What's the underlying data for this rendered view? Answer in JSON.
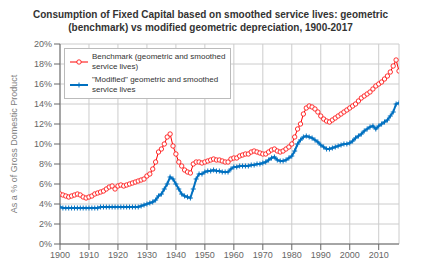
{
  "chart_data": {
    "type": "line",
    "title": "Consumption of Fixed Capital based on smoothed service lives: geometric\n(benchmark) vs modified geometric depreciation, 1900-2017",
    "ylabel": "As a % of Gross Domestic Product",
    "x": [
      1900,
      1901,
      1902,
      1903,
      1904,
      1905,
      1906,
      1907,
      1908,
      1909,
      1910,
      1911,
      1912,
      1913,
      1914,
      1915,
      1916,
      1917,
      1918,
      1919,
      1920,
      1921,
      1922,
      1923,
      1924,
      1925,
      1926,
      1927,
      1928,
      1929,
      1930,
      1931,
      1932,
      1933,
      1934,
      1935,
      1936,
      1937,
      1938,
      1939,
      1940,
      1941,
      1942,
      1943,
      1944,
      1945,
      1946,
      1947,
      1948,
      1949,
      1950,
      1951,
      1952,
      1953,
      1954,
      1955,
      1956,
      1957,
      1958,
      1959,
      1960,
      1961,
      1962,
      1963,
      1964,
      1965,
      1966,
      1967,
      1968,
      1969,
      1970,
      1971,
      1972,
      1973,
      1974,
      1975,
      1976,
      1977,
      1978,
      1979,
      1980,
      1981,
      1982,
      1983,
      1984,
      1985,
      1986,
      1987,
      1988,
      1989,
      1990,
      1991,
      1992,
      1993,
      1994,
      1995,
      1996,
      1997,
      1998,
      1999,
      2000,
      2001,
      2002,
      2003,
      2004,
      2005,
      2006,
      2007,
      2008,
      2009,
      2010,
      2011,
      2012,
      2013,
      2014,
      2015,
      2016,
      2017
    ],
    "series": [
      {
        "name": "Benchmark (geometric and smoothed\nservice lives)",
        "color": "#FF0000",
        "marker": "circle",
        "values": [
          0.05,
          0.049,
          0.048,
          0.047,
          0.048,
          0.049,
          0.05,
          0.049,
          0.047,
          0.046,
          0.047,
          0.048,
          0.05,
          0.051,
          0.052,
          0.053,
          0.055,
          0.057,
          0.058,
          0.055,
          0.058,
          0.059,
          0.058,
          0.059,
          0.06,
          0.061,
          0.062,
          0.063,
          0.064,
          0.065,
          0.068,
          0.07,
          0.075,
          0.082,
          0.092,
          0.095,
          0.1,
          0.107,
          0.11,
          0.098,
          0.09,
          0.082,
          0.078,
          0.074,
          0.072,
          0.071,
          0.08,
          0.082,
          0.082,
          0.081,
          0.082,
          0.083,
          0.084,
          0.085,
          0.084,
          0.084,
          0.083,
          0.082,
          0.082,
          0.085,
          0.086,
          0.086,
          0.088,
          0.089,
          0.09,
          0.09,
          0.092,
          0.093,
          0.092,
          0.091,
          0.09,
          0.09,
          0.092,
          0.094,
          0.095,
          0.093,
          0.092,
          0.093,
          0.095,
          0.097,
          0.1,
          0.107,
          0.115,
          0.12,
          0.13,
          0.136,
          0.138,
          0.137,
          0.135,
          0.132,
          0.128,
          0.125,
          0.123,
          0.122,
          0.124,
          0.126,
          0.128,
          0.13,
          0.132,
          0.134,
          0.136,
          0.138,
          0.14,
          0.143,
          0.146,
          0.148,
          0.15,
          0.152,
          0.155,
          0.158,
          0.16,
          0.162,
          0.165,
          0.168,
          0.172,
          0.178,
          0.184,
          0.173
        ]
      },
      {
        "name": "\"Modified\" geometric and smoothed\nservice lives",
        "color": "#0070C0",
        "marker": "plus",
        "values": [
          0.037,
          0.036,
          0.036,
          0.036,
          0.036,
          0.036,
          0.036,
          0.036,
          0.036,
          0.036,
          0.036,
          0.036,
          0.036,
          0.036,
          0.037,
          0.037,
          0.037,
          0.037,
          0.037,
          0.037,
          0.037,
          0.037,
          0.037,
          0.037,
          0.037,
          0.037,
          0.037,
          0.037,
          0.038,
          0.039,
          0.04,
          0.041,
          0.042,
          0.044,
          0.048,
          0.05,
          0.055,
          0.06,
          0.067,
          0.065,
          0.06,
          0.055,
          0.05,
          0.048,
          0.047,
          0.046,
          0.055,
          0.065,
          0.07,
          0.07,
          0.072,
          0.073,
          0.073,
          0.074,
          0.073,
          0.073,
          0.072,
          0.072,
          0.072,
          0.075,
          0.077,
          0.077,
          0.078,
          0.078,
          0.078,
          0.078,
          0.079,
          0.079,
          0.08,
          0.08,
          0.081,
          0.082,
          0.084,
          0.086,
          0.087,
          0.084,
          0.083,
          0.083,
          0.084,
          0.086,
          0.088,
          0.093,
          0.1,
          0.104,
          0.107,
          0.108,
          0.107,
          0.106,
          0.104,
          0.102,
          0.099,
          0.097,
          0.095,
          0.095,
          0.096,
          0.097,
          0.098,
          0.099,
          0.1,
          0.1,
          0.101,
          0.103,
          0.106,
          0.108,
          0.11,
          0.113,
          0.115,
          0.117,
          0.118,
          0.115,
          0.118,
          0.12,
          0.122,
          0.124,
          0.128,
          0.132,
          0.14,
          0.141
        ]
      }
    ],
    "xlim": [
      1900,
      2017
    ],
    "ylim": [
      0,
      0.2
    ],
    "xticks": [
      1900,
      1910,
      1920,
      1930,
      1940,
      1950,
      1960,
      1970,
      1980,
      1990,
      2000,
      2010
    ],
    "yticks": [
      {
        "value": 0.0,
        "label": "0%"
      },
      {
        "value": 0.02,
        "label": "2%"
      },
      {
        "value": 0.04,
        "label": "4%"
      },
      {
        "value": 0.06,
        "label": "6%"
      },
      {
        "value": 0.08,
        "label": "8%"
      },
      {
        "value": 0.1,
        "label": "10%"
      },
      {
        "value": 0.12,
        "label": "12%"
      },
      {
        "value": 0.14,
        "label": "14%"
      },
      {
        "value": 0.16,
        "label": "16%"
      },
      {
        "value": 0.18,
        "label": "18%"
      },
      {
        "value": 0.2,
        "label": "20%"
      }
    ],
    "grid": true,
    "legend": "upper left"
  }
}
